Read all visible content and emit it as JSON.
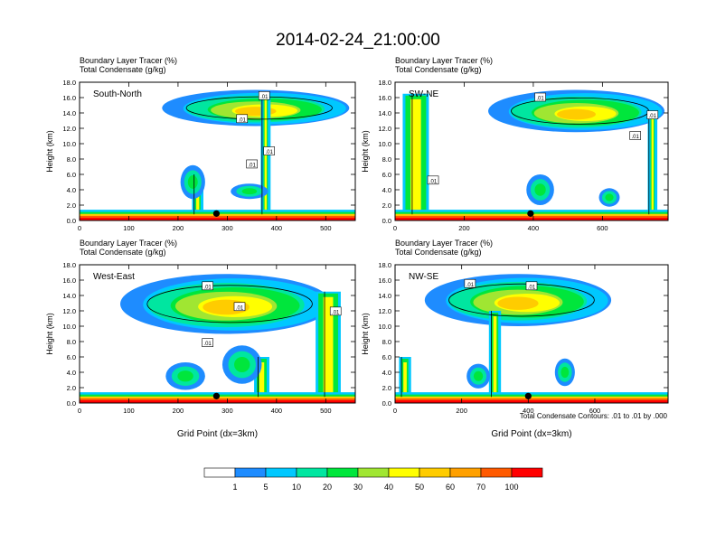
{
  "title": "2014-02-24_21:00:00",
  "colors": {
    "bins": [
      "#ffffff",
      "#1e8cff",
      "#00c8ff",
      "#00e6a0",
      "#00e63c",
      "#a0e632",
      "#ffff00",
      "#ffcc00",
      "#ffa000",
      "#ff5a00",
      "#ff0000"
    ]
  },
  "colorbar": {
    "labels": [
      "1",
      "5",
      "10",
      "20",
      "30",
      "40",
      "50",
      "60",
      "70",
      "100"
    ]
  },
  "footnote": "Total Condensate Contours: .01 to .01 by .000",
  "chart_data": [
    {
      "type": "heatmap",
      "panel_label": "South-North",
      "subtitle_line1": "Boundary Layer Tracer   (%)",
      "subtitle_line2": "Total Condensate   (g/kg)",
      "ylabel": "Height (km)",
      "xlabel": "",
      "xlim": [
        0,
        560
      ],
      "ylim": [
        0,
        18
      ],
      "xticks": [
        0,
        100,
        200,
        300,
        400,
        500
      ],
      "xtick_labels": [
        "0",
        "100",
        "200",
        "300",
        "400",
        "500"
      ],
      "yticks": [
        0,
        2,
        4,
        6,
        8,
        10,
        12,
        14,
        16,
        18
      ],
      "ytick_labels": [
        "0.0",
        "2.0",
        "4.0",
        "6.0",
        "8.0",
        "10.0",
        "12.0",
        "14.0",
        "16.0",
        "18.0"
      ],
      "marker": {
        "x": 278,
        "y": 0.9
      },
      "contour_labels": [
        {
          "text": ".01",
          "x": 375,
          "y": 16.2
        },
        {
          "text": ".01",
          "x": 330,
          "y": 13.2
        },
        {
          "text": ".01",
          "x": 385,
          "y": 9.0
        },
        {
          "text": ".01",
          "x": 350,
          "y": 7.3
        }
      ],
      "anvil": {
        "x0": 175,
        "x1": 555,
        "base": 12.3,
        "top": 17.0
      },
      "columns": [
        {
          "x": 240,
          "top": 6.0,
          "w": 12
        },
        {
          "x": 378,
          "top": 16.5,
          "w": 9
        }
      ],
      "clouds": [
        {
          "x": 230,
          "y": 5.0,
          "rx": 25,
          "ry": 2.2
        },
        {
          "x": 345,
          "y": 3.8,
          "rx": 38,
          "ry": 1.0
        }
      ]
    },
    {
      "type": "heatmap",
      "panel_label": "SW-NE",
      "subtitle_line1": "Boundary Layer Tracer   (%)",
      "subtitle_line2": "Total Condensate   (g/kg)",
      "ylabel": "Height (km)",
      "xlabel": "",
      "xlim": [
        0,
        790
      ],
      "ylim": [
        0,
        18
      ],
      "xticks": [
        0,
        200,
        400,
        600
      ],
      "xtick_labels": [
        "0",
        "200",
        "400",
        "600"
      ],
      "yticks": [
        0,
        2,
        4,
        6,
        8,
        10,
        12,
        14,
        16,
        18
      ],
      "ytick_labels": [
        "0.0",
        "2.0",
        "4.0",
        "6.0",
        "8.0",
        "10.0",
        "12.0",
        "14.0",
        "16.0",
        "18.0"
      ],
      "marker": {
        "x": 392,
        "y": 0.9
      },
      "contour_labels": [
        {
          "text": ".01",
          "x": 420,
          "y": 16.0
        },
        {
          "text": ".01",
          "x": 110,
          "y": 5.2
        },
        {
          "text": ".01",
          "x": 745,
          "y": 13.7
        },
        {
          "text": ".01",
          "x": 695,
          "y": 11.0
        }
      ],
      "anvil": {
        "x0": 280,
        "x1": 790,
        "base": 11.5,
        "top": 17.0
      },
      "columns": [
        {
          "x": 60,
          "top": 16.5,
          "w": 60
        },
        {
          "x": 745,
          "top": 14.0,
          "w": 12
        }
      ],
      "clouds": [
        {
          "x": 420,
          "y": 4.0,
          "rx": 40,
          "ry": 2.0
        },
        {
          "x": 620,
          "y": 3.0,
          "rx": 30,
          "ry": 1.2
        }
      ]
    },
    {
      "type": "heatmap",
      "panel_label": "West-East",
      "subtitle_line1": "Boundary Layer Tracer   (%)",
      "subtitle_line2": "Total Condensate   (g/kg)",
      "ylabel": "Height (km)",
      "xlabel": "Grid Point (dx=3km)",
      "xlim": [
        0,
        560
      ],
      "ylim": [
        0,
        18
      ],
      "xticks": [
        0,
        100,
        200,
        300,
        400,
        500
      ],
      "xtick_labels": [
        "0",
        "100",
        "200",
        "300",
        "400",
        "500"
      ],
      "yticks": [
        0,
        2,
        4,
        6,
        8,
        10,
        12,
        14,
        16,
        18
      ],
      "ytick_labels": [
        "0.0",
        "2.0",
        "4.0",
        "6.0",
        "8.0",
        "10.0",
        "12.0",
        "14.0",
        "16.0",
        "18.0"
      ],
      "marker": {
        "x": 278,
        "y": 0.9
      },
      "contour_labels": [
        {
          "text": ".01",
          "x": 260,
          "y": 15.2
        },
        {
          "text": ".01",
          "x": 325,
          "y": 12.5
        },
        {
          "text": ".01",
          "x": 520,
          "y": 11.9
        },
        {
          "text": ".01",
          "x": 260,
          "y": 7.8
        }
      ],
      "anvil": {
        "x0": 90,
        "x1": 520,
        "base": 9.0,
        "top": 16.8
      },
      "columns": [
        {
          "x": 505,
          "top": 14.5,
          "w": 40
        },
        {
          "x": 370,
          "top": 6.0,
          "w": 20
        }
      ],
      "clouds": [
        {
          "x": 215,
          "y": 3.5,
          "rx": 40,
          "ry": 1.8
        },
        {
          "x": 330,
          "y": 5.0,
          "rx": 40,
          "ry": 2.5
        }
      ]
    },
    {
      "type": "heatmap",
      "panel_label": "NW-SE",
      "subtitle_line1": "Boundary Layer Tracer   (%)",
      "subtitle_line2": "Total Condensate   (g/kg)",
      "ylabel": "Height (km)",
      "xlabel": "Grid Point (dx=3km)",
      "xlim": [
        0,
        820
      ],
      "ylim": [
        0,
        18
      ],
      "xticks": [
        0,
        200,
        400,
        600
      ],
      "xtick_labels": [
        "0",
        "200",
        "400",
        "600"
      ],
      "yticks": [
        0,
        2,
        4,
        6,
        8,
        10,
        12,
        14,
        16,
        18
      ],
      "ytick_labels": [
        "0.0",
        "2.0",
        "4.0",
        "6.0",
        "8.0",
        "10.0",
        "12.0",
        "14.0",
        "16.0",
        "18.0"
      ],
      "marker": {
        "x": 400,
        "y": 0.9
      },
      "contour_labels": [
        {
          "text": ".01",
          "x": 225,
          "y": 15.5
        },
        {
          "text": ".01",
          "x": 410,
          "y": 15.2
        }
      ],
      "anvil": {
        "x0": 100,
        "x1": 660,
        "base": 10.0,
        "top": 16.8
      },
      "columns": [
        {
          "x": 300,
          "top": 12.0,
          "w": 20
        },
        {
          "x": 30,
          "top": 6.0,
          "w": 20
        }
      ],
      "clouds": [
        {
          "x": 250,
          "y": 3.5,
          "rx": 35,
          "ry": 1.6
        },
        {
          "x": 510,
          "y": 4.0,
          "rx": 30,
          "ry": 1.8
        }
      ]
    }
  ]
}
